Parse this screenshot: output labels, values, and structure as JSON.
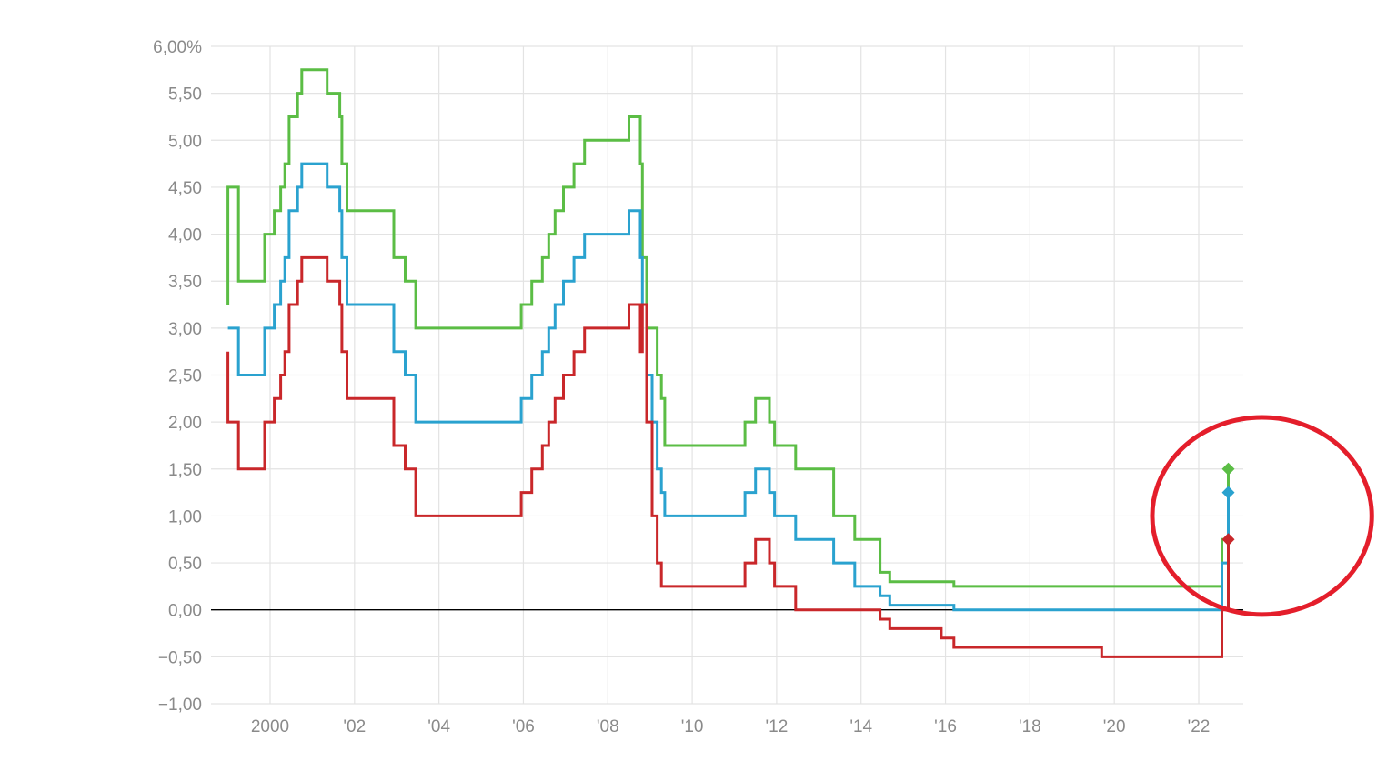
{
  "chart_data": {
    "type": "line",
    "title": "",
    "xlabel": "",
    "ylabel": "",
    "xlim": [
      1999.0,
      2023.3
    ],
    "ylim": [
      -1.0,
      6.0
    ],
    "grid": true,
    "x_ticks": [
      {
        "value": 2000,
        "label": "2000"
      },
      {
        "value": 2002,
        "label": "'02"
      },
      {
        "value": 2004,
        "label": "'04"
      },
      {
        "value": 2006,
        "label": "'06"
      },
      {
        "value": 2008,
        "label": "'08"
      },
      {
        "value": 2010,
        "label": "'10"
      },
      {
        "value": 2012,
        "label": "'12"
      },
      {
        "value": 2014,
        "label": "'14"
      },
      {
        "value": 2016,
        "label": "'16"
      },
      {
        "value": 2018,
        "label": "'18"
      },
      {
        "value": 2020,
        "label": "'20"
      },
      {
        "value": 2022,
        "label": "'22"
      }
    ],
    "y_ticks": [
      {
        "value": 6.0,
        "label": "6,00%"
      },
      {
        "value": 5.5,
        "label": "5,50"
      },
      {
        "value": 5.0,
        "label": "5,00"
      },
      {
        "value": 4.5,
        "label": "4,50"
      },
      {
        "value": 4.0,
        "label": "4,00"
      },
      {
        "value": 3.5,
        "label": "3,50"
      },
      {
        "value": 3.0,
        "label": "3,00"
      },
      {
        "value": 2.5,
        "label": "2,50"
      },
      {
        "value": 2.0,
        "label": "2,00"
      },
      {
        "value": 1.5,
        "label": "1,50"
      },
      {
        "value": 1.0,
        "label": "1,00"
      },
      {
        "value": 0.5,
        "label": "0,50"
      },
      {
        "value": 0.0,
        "label": "0,00"
      },
      {
        "value": -0.5,
        "label": "−0,50"
      },
      {
        "value": -1.0,
        "label": "−1,00"
      }
    ],
    "series": [
      {
        "color": "#5bbd45",
        "step": true,
        "points": [
          [
            1999.0,
            3.25
          ],
          [
            1999.0,
            4.5
          ],
          [
            1999.25,
            4.5
          ],
          [
            1999.25,
            3.5
          ],
          [
            1999.87,
            3.5
          ],
          [
            1999.87,
            4.0
          ],
          [
            2000.1,
            4.0
          ],
          [
            2000.1,
            4.25
          ],
          [
            2000.25,
            4.25
          ],
          [
            2000.25,
            4.5
          ],
          [
            2000.35,
            4.5
          ],
          [
            2000.35,
            4.75
          ],
          [
            2000.45,
            4.75
          ],
          [
            2000.45,
            5.25
          ],
          [
            2000.65,
            5.25
          ],
          [
            2000.65,
            5.5
          ],
          [
            2000.75,
            5.5
          ],
          [
            2000.75,
            5.75
          ],
          [
            2001.35,
            5.75
          ],
          [
            2001.35,
            5.5
          ],
          [
            2001.65,
            5.5
          ],
          [
            2001.65,
            5.25
          ],
          [
            2001.7,
            5.25
          ],
          [
            2001.7,
            4.75
          ],
          [
            2001.82,
            4.75
          ],
          [
            2001.82,
            4.25
          ],
          [
            2002.93,
            4.25
          ],
          [
            2002.93,
            3.75
          ],
          [
            2003.2,
            3.75
          ],
          [
            2003.2,
            3.5
          ],
          [
            2003.45,
            3.5
          ],
          [
            2003.45,
            3.0
          ],
          [
            2005.95,
            3.0
          ],
          [
            2005.95,
            3.25
          ],
          [
            2006.2,
            3.25
          ],
          [
            2006.2,
            3.5
          ],
          [
            2006.45,
            3.5
          ],
          [
            2006.45,
            3.75
          ],
          [
            2006.6,
            3.75
          ],
          [
            2006.6,
            4.0
          ],
          [
            2006.75,
            4.0
          ],
          [
            2006.75,
            4.25
          ],
          [
            2006.95,
            4.25
          ],
          [
            2006.95,
            4.5
          ],
          [
            2007.2,
            4.5
          ],
          [
            2007.2,
            4.75
          ],
          [
            2007.45,
            4.75
          ],
          [
            2007.45,
            5.0
          ],
          [
            2008.5,
            5.0
          ],
          [
            2008.5,
            5.25
          ],
          [
            2008.77,
            5.25
          ],
          [
            2008.77,
            4.75
          ],
          [
            2008.82,
            4.75
          ],
          [
            2008.82,
            3.75
          ],
          [
            2008.92,
            3.75
          ],
          [
            2008.92,
            3.0
          ],
          [
            2009.17,
            3.0
          ],
          [
            2009.17,
            2.5
          ],
          [
            2009.27,
            2.5
          ],
          [
            2009.27,
            2.25
          ],
          [
            2009.35,
            2.25
          ],
          [
            2009.35,
            1.75
          ],
          [
            2011.25,
            1.75
          ],
          [
            2011.25,
            2.0
          ],
          [
            2011.5,
            2.0
          ],
          [
            2011.5,
            2.25
          ],
          [
            2011.83,
            2.25
          ],
          [
            2011.83,
            2.0
          ],
          [
            2011.95,
            2.0
          ],
          [
            2011.95,
            1.75
          ],
          [
            2012.45,
            1.75
          ],
          [
            2012.45,
            1.5
          ],
          [
            2013.35,
            1.5
          ],
          [
            2013.35,
            1.0
          ],
          [
            2013.85,
            1.0
          ],
          [
            2013.85,
            0.75
          ],
          [
            2014.45,
            0.75
          ],
          [
            2014.45,
            0.4
          ],
          [
            2014.68,
            0.4
          ],
          [
            2014.68,
            0.3
          ],
          [
            2016.2,
            0.3
          ],
          [
            2016.2,
            0.25
          ],
          [
            2022.55,
            0.25
          ],
          [
            2022.55,
            0.75
          ],
          [
            2022.7,
            0.75
          ],
          [
            2022.7,
            1.5
          ]
        ],
        "last_point": [
          2022.7,
          1.5
        ]
      },
      {
        "color": "#2aa2cf",
        "step": true,
        "points": [
          [
            1999.0,
            3.0
          ],
          [
            1999.25,
            3.0
          ],
          [
            1999.25,
            2.5
          ],
          [
            1999.87,
            2.5
          ],
          [
            1999.87,
            3.0
          ],
          [
            2000.1,
            3.0
          ],
          [
            2000.1,
            3.25
          ],
          [
            2000.25,
            3.25
          ],
          [
            2000.25,
            3.5
          ],
          [
            2000.35,
            3.5
          ],
          [
            2000.35,
            3.75
          ],
          [
            2000.45,
            3.75
          ],
          [
            2000.45,
            4.25
          ],
          [
            2000.65,
            4.25
          ],
          [
            2000.65,
            4.5
          ],
          [
            2000.75,
            4.5
          ],
          [
            2000.75,
            4.75
          ],
          [
            2001.35,
            4.75
          ],
          [
            2001.35,
            4.5
          ],
          [
            2001.65,
            4.5
          ],
          [
            2001.65,
            4.25
          ],
          [
            2001.7,
            4.25
          ],
          [
            2001.7,
            3.75
          ],
          [
            2001.82,
            3.75
          ],
          [
            2001.82,
            3.25
          ],
          [
            2002.93,
            3.25
          ],
          [
            2002.93,
            2.75
          ],
          [
            2003.2,
            2.75
          ],
          [
            2003.2,
            2.5
          ],
          [
            2003.45,
            2.5
          ],
          [
            2003.45,
            2.0
          ],
          [
            2005.95,
            2.0
          ],
          [
            2005.95,
            2.25
          ],
          [
            2006.2,
            2.25
          ],
          [
            2006.2,
            2.5
          ],
          [
            2006.45,
            2.5
          ],
          [
            2006.45,
            2.75
          ],
          [
            2006.6,
            2.75
          ],
          [
            2006.6,
            3.0
          ],
          [
            2006.75,
            3.0
          ],
          [
            2006.75,
            3.25
          ],
          [
            2006.95,
            3.25
          ],
          [
            2006.95,
            3.5
          ],
          [
            2007.2,
            3.5
          ],
          [
            2007.2,
            3.75
          ],
          [
            2007.45,
            3.75
          ],
          [
            2007.45,
            4.0
          ],
          [
            2008.5,
            4.0
          ],
          [
            2008.5,
            4.25
          ],
          [
            2008.77,
            4.25
          ],
          [
            2008.77,
            3.75
          ],
          [
            2008.82,
            3.75
          ],
          [
            2008.82,
            3.25
          ],
          [
            2008.92,
            3.25
          ],
          [
            2008.92,
            2.5
          ],
          [
            2009.05,
            2.5
          ],
          [
            2009.05,
            2.0
          ],
          [
            2009.17,
            2.0
          ],
          [
            2009.17,
            1.5
          ],
          [
            2009.27,
            1.5
          ],
          [
            2009.27,
            1.25
          ],
          [
            2009.35,
            1.25
          ],
          [
            2009.35,
            1.0
          ],
          [
            2011.25,
            1.0
          ],
          [
            2011.25,
            1.25
          ],
          [
            2011.5,
            1.25
          ],
          [
            2011.5,
            1.5
          ],
          [
            2011.83,
            1.5
          ],
          [
            2011.83,
            1.25
          ],
          [
            2011.95,
            1.25
          ],
          [
            2011.95,
            1.0
          ],
          [
            2012.45,
            1.0
          ],
          [
            2012.45,
            0.75
          ],
          [
            2013.35,
            0.75
          ],
          [
            2013.35,
            0.5
          ],
          [
            2013.85,
            0.5
          ],
          [
            2013.85,
            0.25
          ],
          [
            2014.45,
            0.25
          ],
          [
            2014.45,
            0.15
          ],
          [
            2014.68,
            0.15
          ],
          [
            2014.68,
            0.05
          ],
          [
            2016.2,
            0.05
          ],
          [
            2016.2,
            0.0
          ],
          [
            2022.55,
            0.0
          ],
          [
            2022.55,
            0.5
          ],
          [
            2022.7,
            0.5
          ],
          [
            2022.7,
            1.25
          ]
        ],
        "last_point": [
          2022.7,
          1.25
        ]
      },
      {
        "color": "#c9272a",
        "step": true,
        "points": [
          [
            1999.0,
            2.75
          ],
          [
            1999.0,
            2.0
          ],
          [
            1999.25,
            2.0
          ],
          [
            1999.25,
            1.5
          ],
          [
            1999.87,
            1.5
          ],
          [
            1999.87,
            2.0
          ],
          [
            2000.1,
            2.0
          ],
          [
            2000.1,
            2.25
          ],
          [
            2000.25,
            2.25
          ],
          [
            2000.25,
            2.5
          ],
          [
            2000.35,
            2.5
          ],
          [
            2000.35,
            2.75
          ],
          [
            2000.45,
            2.75
          ],
          [
            2000.45,
            3.25
          ],
          [
            2000.65,
            3.25
          ],
          [
            2000.65,
            3.5
          ],
          [
            2000.75,
            3.5
          ],
          [
            2000.75,
            3.75
          ],
          [
            2001.35,
            3.75
          ],
          [
            2001.35,
            3.5
          ],
          [
            2001.65,
            3.5
          ],
          [
            2001.65,
            3.25
          ],
          [
            2001.7,
            3.25
          ],
          [
            2001.7,
            2.75
          ],
          [
            2001.82,
            2.75
          ],
          [
            2001.82,
            2.25
          ],
          [
            2002.93,
            2.25
          ],
          [
            2002.93,
            1.75
          ],
          [
            2003.2,
            1.75
          ],
          [
            2003.2,
            1.5
          ],
          [
            2003.45,
            1.5
          ],
          [
            2003.45,
            1.0
          ],
          [
            2005.95,
            1.0
          ],
          [
            2005.95,
            1.25
          ],
          [
            2006.2,
            1.25
          ],
          [
            2006.2,
            1.5
          ],
          [
            2006.45,
            1.5
          ],
          [
            2006.45,
            1.75
          ],
          [
            2006.6,
            1.75
          ],
          [
            2006.6,
            2.0
          ],
          [
            2006.75,
            2.0
          ],
          [
            2006.75,
            2.25
          ],
          [
            2006.95,
            2.25
          ],
          [
            2006.95,
            2.5
          ],
          [
            2007.2,
            2.5
          ],
          [
            2007.2,
            2.75
          ],
          [
            2007.45,
            2.75
          ],
          [
            2007.45,
            3.0
          ],
          [
            2008.5,
            3.0
          ],
          [
            2008.5,
            3.25
          ],
          [
            2008.77,
            3.25
          ],
          [
            2008.77,
            2.75
          ],
          [
            2008.82,
            2.75
          ],
          [
            2008.82,
            3.25
          ],
          [
            2008.92,
            3.25
          ],
          [
            2008.92,
            2.0
          ],
          [
            2009.05,
            2.0
          ],
          [
            2009.05,
            1.0
          ],
          [
            2009.17,
            1.0
          ],
          [
            2009.17,
            0.5
          ],
          [
            2009.27,
            0.5
          ],
          [
            2009.27,
            0.25
          ],
          [
            2011.25,
            0.25
          ],
          [
            2011.25,
            0.5
          ],
          [
            2011.5,
            0.5
          ],
          [
            2011.5,
            0.75
          ],
          [
            2011.83,
            0.75
          ],
          [
            2011.83,
            0.5
          ],
          [
            2011.95,
            0.5
          ],
          [
            2011.95,
            0.25
          ],
          [
            2012.45,
            0.25
          ],
          [
            2012.45,
            0.0
          ],
          [
            2014.45,
            0.0
          ],
          [
            2014.45,
            -0.1
          ],
          [
            2014.68,
            -0.1
          ],
          [
            2014.68,
            -0.2
          ],
          [
            2015.9,
            -0.2
          ],
          [
            2015.9,
            -0.3
          ],
          [
            2016.2,
            -0.3
          ],
          [
            2016.2,
            -0.4
          ],
          [
            2019.7,
            -0.4
          ],
          [
            2019.7,
            -0.5
          ],
          [
            2022.55,
            -0.5
          ],
          [
            2022.55,
            0.0
          ],
          [
            2022.7,
            0.0
          ],
          [
            2022.7,
            0.75
          ]
        ],
        "last_point": [
          2022.7,
          0.75
        ]
      }
    ],
    "annotations": [
      {
        "type": "ellipse-highlight",
        "color": "#e41e2b",
        "center": [
          2023.5,
          1.0
        ],
        "rx_years": 2.6,
        "ry_value": 1.05
      }
    ]
  }
}
